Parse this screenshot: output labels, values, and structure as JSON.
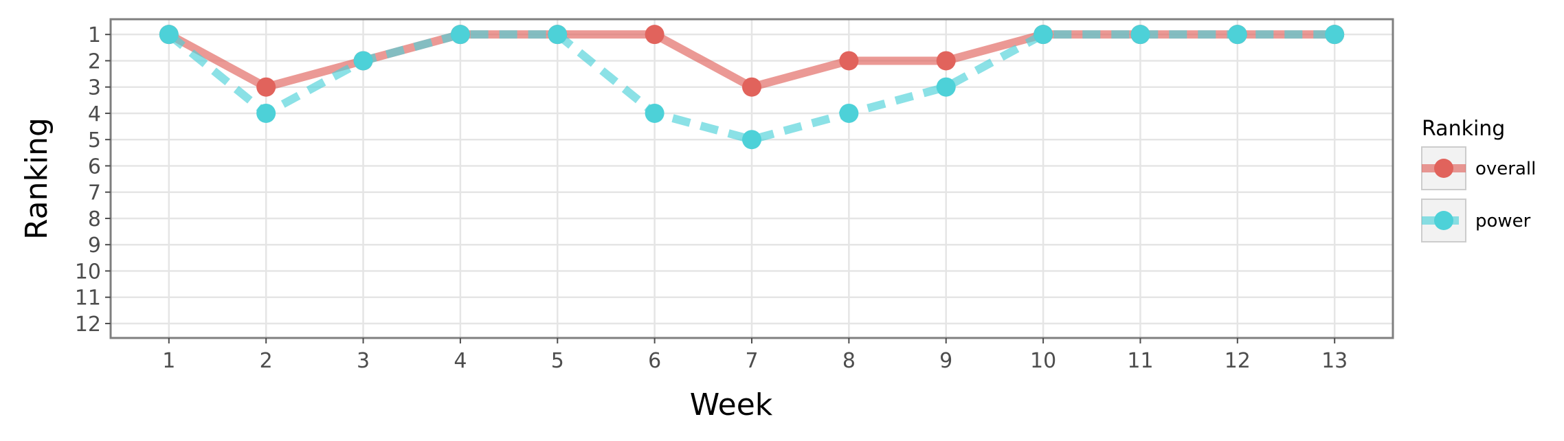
{
  "chart_data": {
    "type": "line",
    "title": "",
    "xlabel": "Week",
    "ylabel": "Ranking",
    "x": [
      1,
      2,
      3,
      4,
      5,
      6,
      7,
      8,
      9,
      10,
      11,
      12,
      13
    ],
    "x_ticks": [
      "1",
      "2",
      "3",
      "4",
      "5",
      "6",
      "7",
      "8",
      "9",
      "10",
      "11",
      "12",
      "13"
    ],
    "y_ticks": [
      "1",
      "2",
      "3",
      "4",
      "5",
      "6",
      "7",
      "8",
      "9",
      "10",
      "11",
      "12"
    ],
    "xlim": [
      0.4,
      13.6
    ],
    "ylim": [
      12.55,
      0.42
    ],
    "y_reversed": true,
    "grid": true,
    "legend": {
      "title": "Ranking",
      "position": "right"
    },
    "series": [
      {
        "name": "overall",
        "color": "#E1635C",
        "line_style": "solid",
        "values": [
          1,
          3,
          2,
          1,
          1,
          1,
          3,
          2,
          2,
          1,
          1,
          1,
          1
        ]
      },
      {
        "name": "power",
        "color": "#4DD1D8",
        "line_style": "dashed",
        "values": [
          1,
          4,
          2,
          1,
          1,
          4,
          5,
          4,
          3,
          1,
          1,
          1,
          1
        ]
      }
    ]
  }
}
